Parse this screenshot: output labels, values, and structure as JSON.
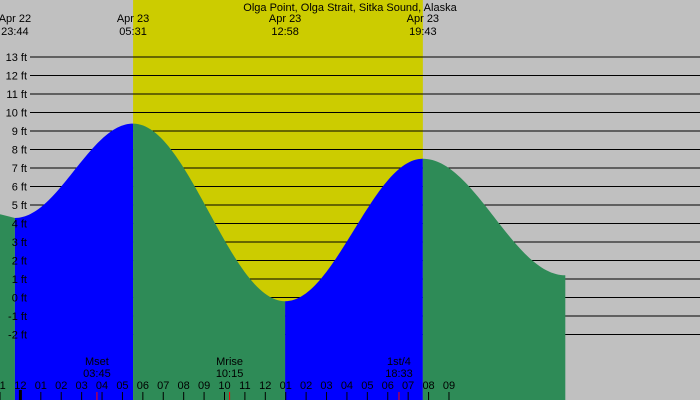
{
  "chart_data": {
    "type": "area",
    "title": "Olga Point, Olga Strait, Sitka Sound, Alaska",
    "unit": "ft",
    "ylim": [
      -3,
      14
    ],
    "y_ticks": [
      -2,
      -1,
      0,
      1,
      2,
      3,
      4,
      5,
      6,
      7,
      8,
      9,
      10,
      11,
      12,
      13
    ],
    "y_tick_labels": [
      "-2 ft",
      "-1 ft",
      "0 ft",
      "1 ft",
      "2 ft",
      "3 ft",
      "4 ft",
      "5 ft",
      "6 ft",
      "7 ft",
      "8 ft",
      "9 ft",
      "10 ft",
      "11 ft",
      "12 ft",
      "13 ft"
    ],
    "xlim_hours": [
      -1.0,
      33.3
    ],
    "daylight": {
      "start_hour": 5.52,
      "end_hour": 19.72
    },
    "x_tick_labels": [
      "11",
      "12",
      "01",
      "02",
      "03",
      "04",
      "05",
      "06",
      "07",
      "08",
      "09",
      "10",
      "11",
      "12",
      "01",
      "02",
      "03",
      "04",
      "05",
      "06",
      "07",
      "08",
      "09"
    ],
    "tide_events": [
      {
        "date": "Apr 22",
        "time": "23:44",
        "hour": -0.27,
        "height": 4.3,
        "type": "low"
      },
      {
        "date": "Apr 23",
        "time": "05:31",
        "hour": 5.52,
        "height": 9.4,
        "type": "high"
      },
      {
        "date": "Apr 23",
        "time": "12:58",
        "hour": 12.97,
        "height": -0.2,
        "type": "low"
      },
      {
        "date": "Apr 23",
        "time": "19:43",
        "hour": 19.72,
        "height": 7.5,
        "type": "high"
      },
      {
        "date": "",
        "time": "",
        "hour": 26.7,
        "height": 1.2,
        "type": "low"
      }
    ],
    "tide_before_first_event": {
      "hour": -1.0,
      "height": 4.5
    },
    "astro_events": [
      {
        "label": "Mset",
        "time": "03:45",
        "hour": 3.75
      },
      {
        "label": "Mrise",
        "time": "10:15",
        "hour": 10.25
      },
      {
        "label": "1st/4",
        "time": "18:33",
        "hour": 18.55
      }
    ],
    "colors": {
      "night": "#c0c0c0",
      "day": "#cccc00",
      "rising": "#0000ff",
      "falling": "#2e8b57",
      "grid": "#000000",
      "marker": "#ff0000"
    }
  }
}
